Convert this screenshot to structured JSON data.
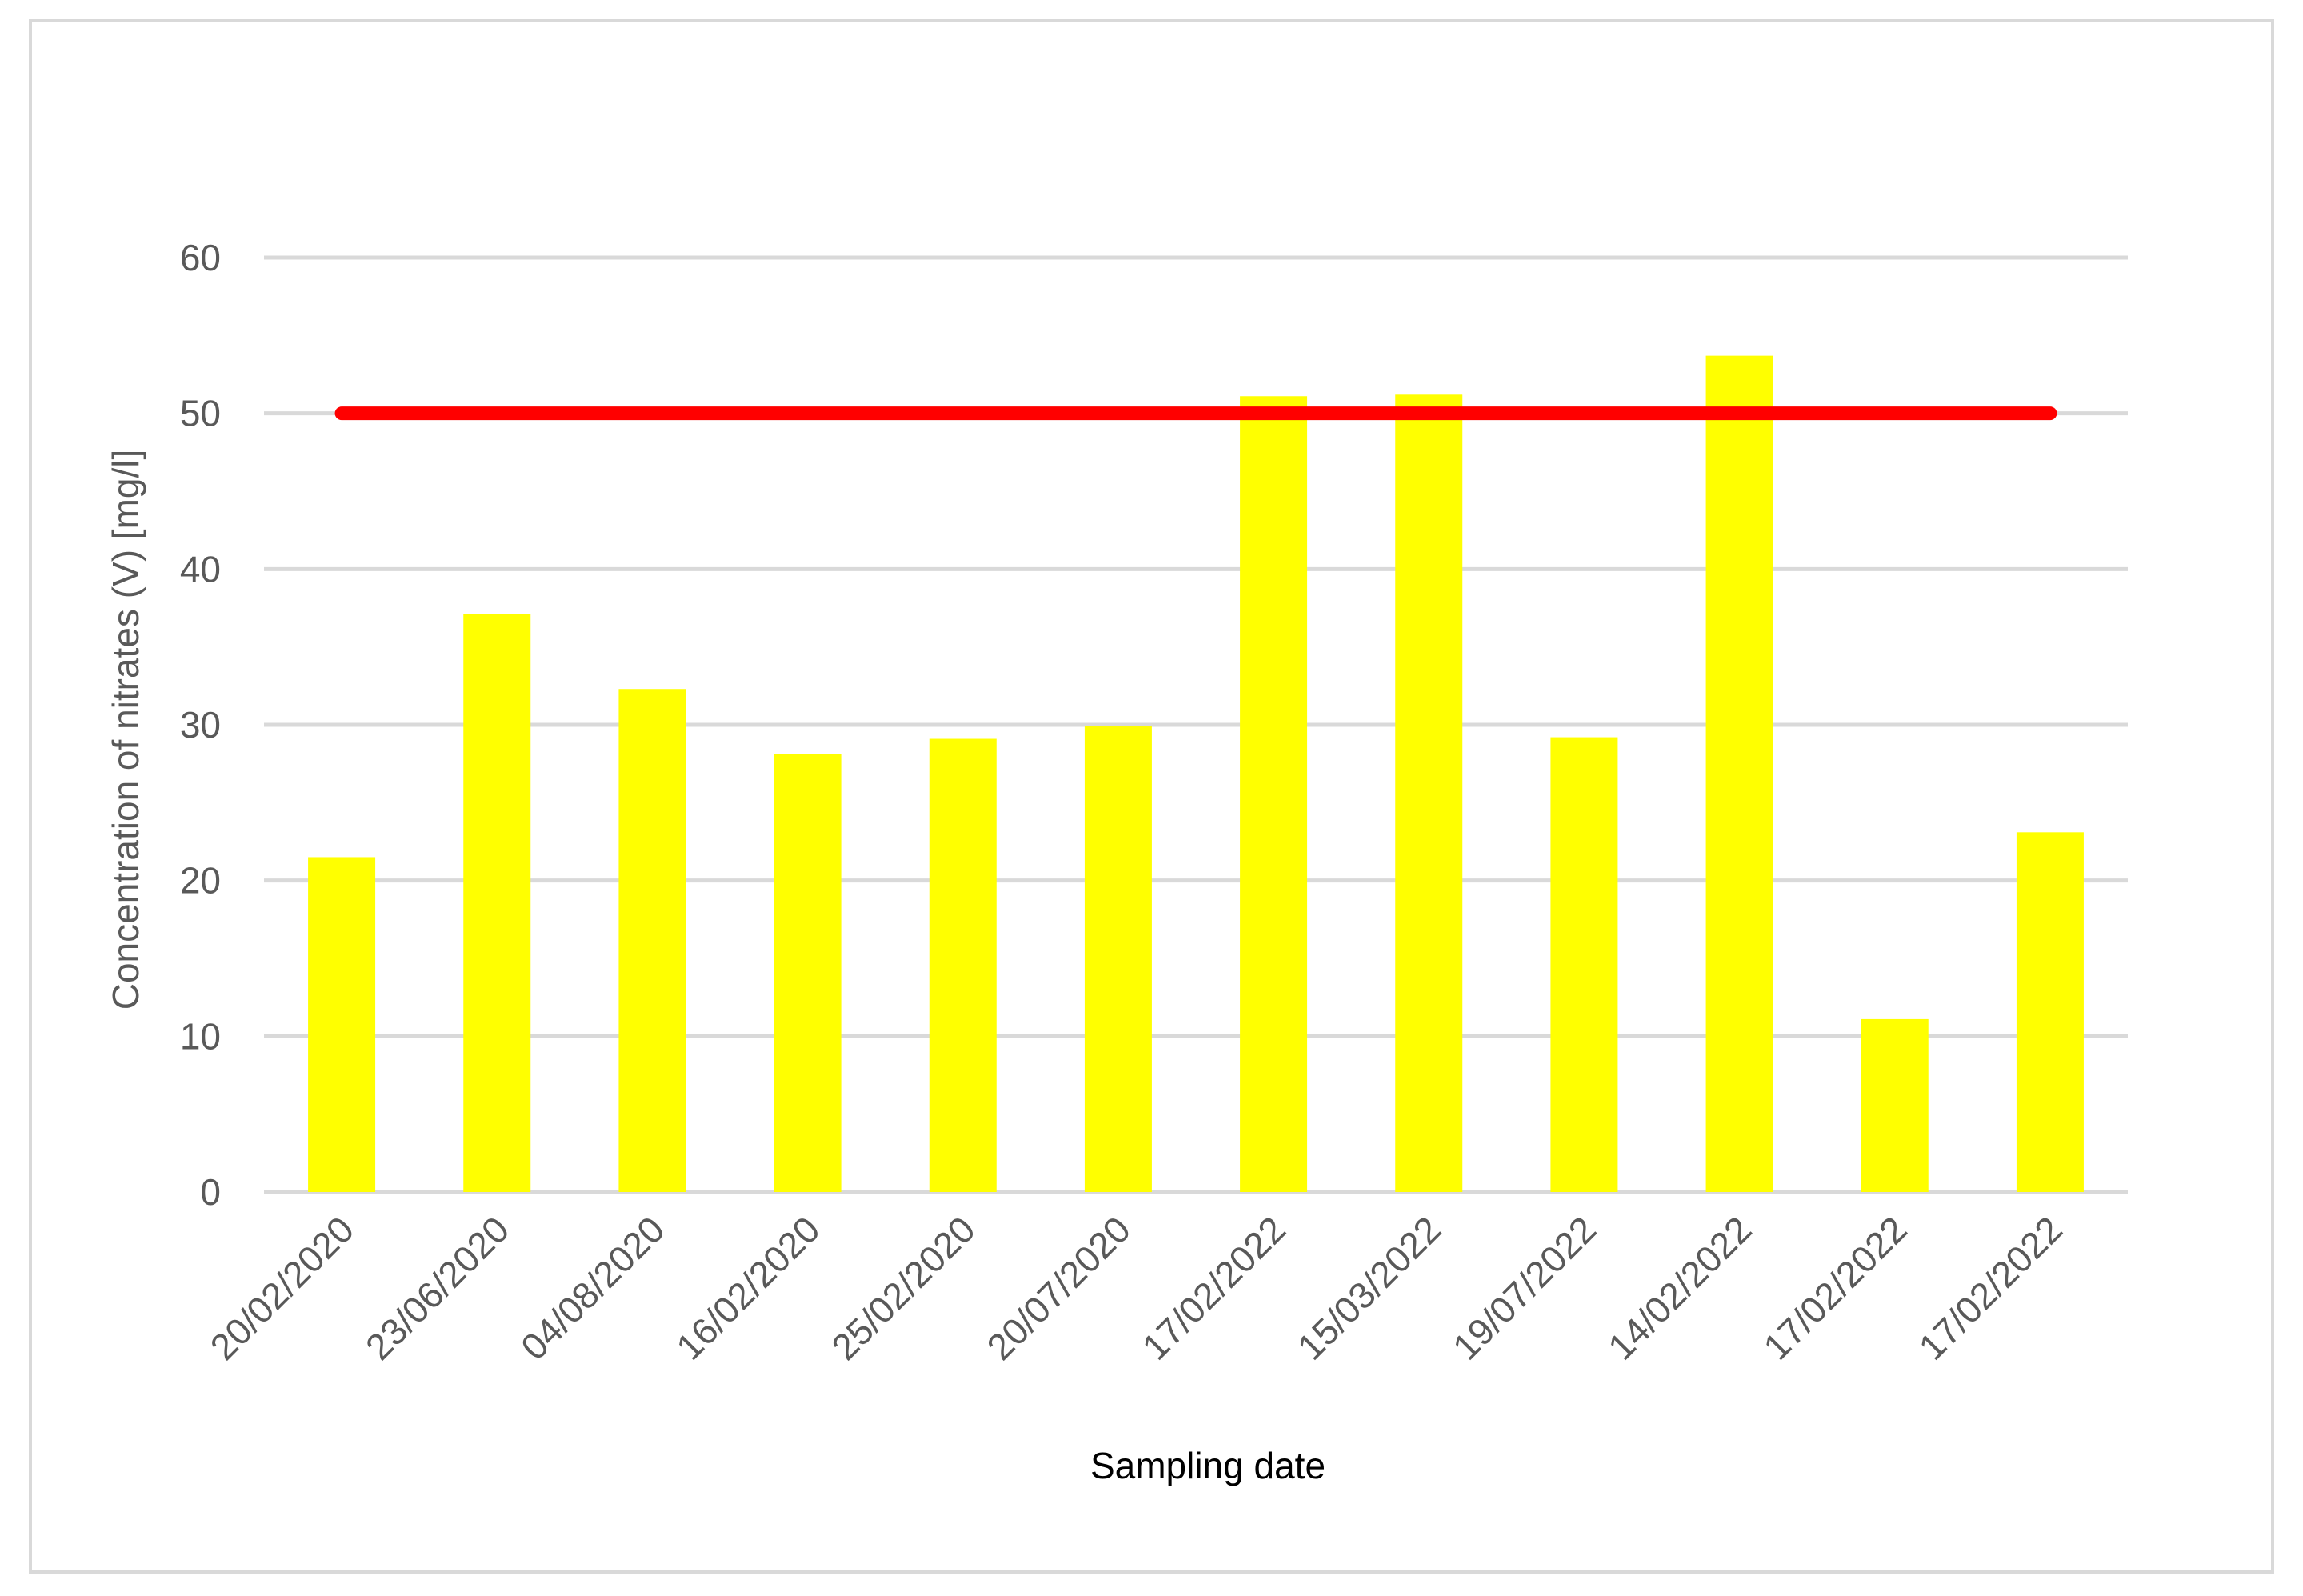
{
  "chart_data": {
    "type": "bar",
    "categories": [
      "20/02/2020",
      "23/06/2020",
      "04/08/2020",
      "16/02/2020",
      "25/02/2020",
      "20/07/2020",
      "17/02/2022",
      "15/03/2022",
      "19/07/2022",
      "14/02/2022",
      "17/02/2022",
      "17/02/2022"
    ],
    "values": [
      21.5,
      37.1,
      32.3,
      28.1,
      29.1,
      29.9,
      51.1,
      51.2,
      29.2,
      53.7,
      11.1,
      23.1
    ],
    "reference_line": {
      "value": 50,
      "color": "#ff0000"
    },
    "title": "",
    "xlabel": "Sampling date",
    "ylabel": "Concentration of nitrates (V) [mg/l]",
    "ylim": [
      0,
      60
    ],
    "yticks": [
      0,
      10,
      20,
      30,
      40,
      50,
      60
    ],
    "grid": true,
    "legend": "none",
    "bar_color": "#ffff00",
    "grid_color": "#d9d9d9"
  }
}
